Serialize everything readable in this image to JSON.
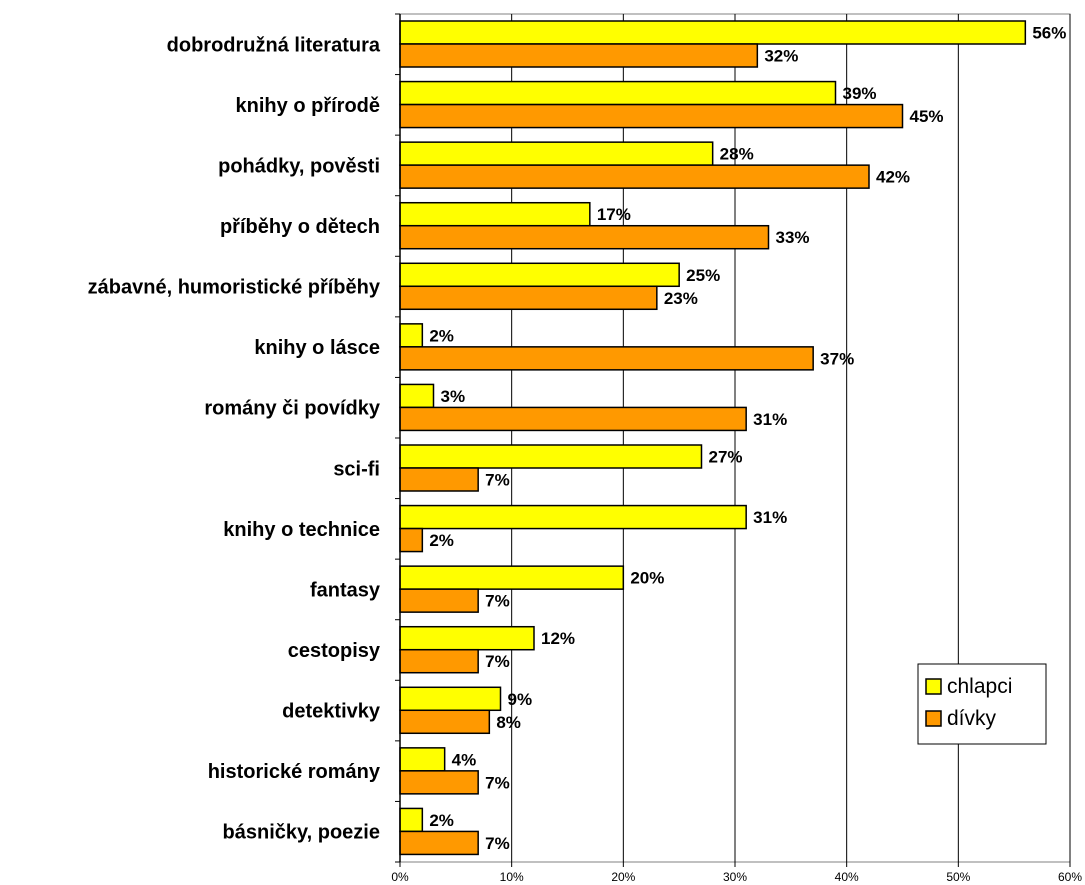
{
  "chart_data": {
    "type": "bar",
    "orientation": "horizontal",
    "categories": [
      "dobrodružná literatura",
      "knihy o přírodě",
      "pohádky, pověsti",
      "příběhy o dětech",
      "zábavné, humoristické příběhy",
      "knihy o lásce",
      "romány či povídky",
      "sci-fi",
      "knihy o technice",
      "fantasy",
      "cestopisy",
      "detektivky",
      "historické romány",
      "básničky, poezie"
    ],
    "series": [
      {
        "name": "chlapci",
        "color": "#FFFF00",
        "values": [
          56,
          39,
          28,
          17,
          25,
          2,
          3,
          27,
          31,
          20,
          12,
          9,
          4,
          2
        ]
      },
      {
        "name": "dívky",
        "color": "#FF9900",
        "values": [
          32,
          45,
          42,
          33,
          23,
          37,
          31,
          7,
          2,
          7,
          7,
          8,
          7,
          7
        ]
      }
    ],
    "value_suffix": "%",
    "xlim": [
      0,
      60
    ],
    "xticks": [
      "0%",
      "10%",
      "20%",
      "30%",
      "40%",
      "50%",
      "60%"
    ],
    "grid": "vertical",
    "legend_position": "bottom-right",
    "title": "",
    "xlabel": "",
    "ylabel": ""
  }
}
